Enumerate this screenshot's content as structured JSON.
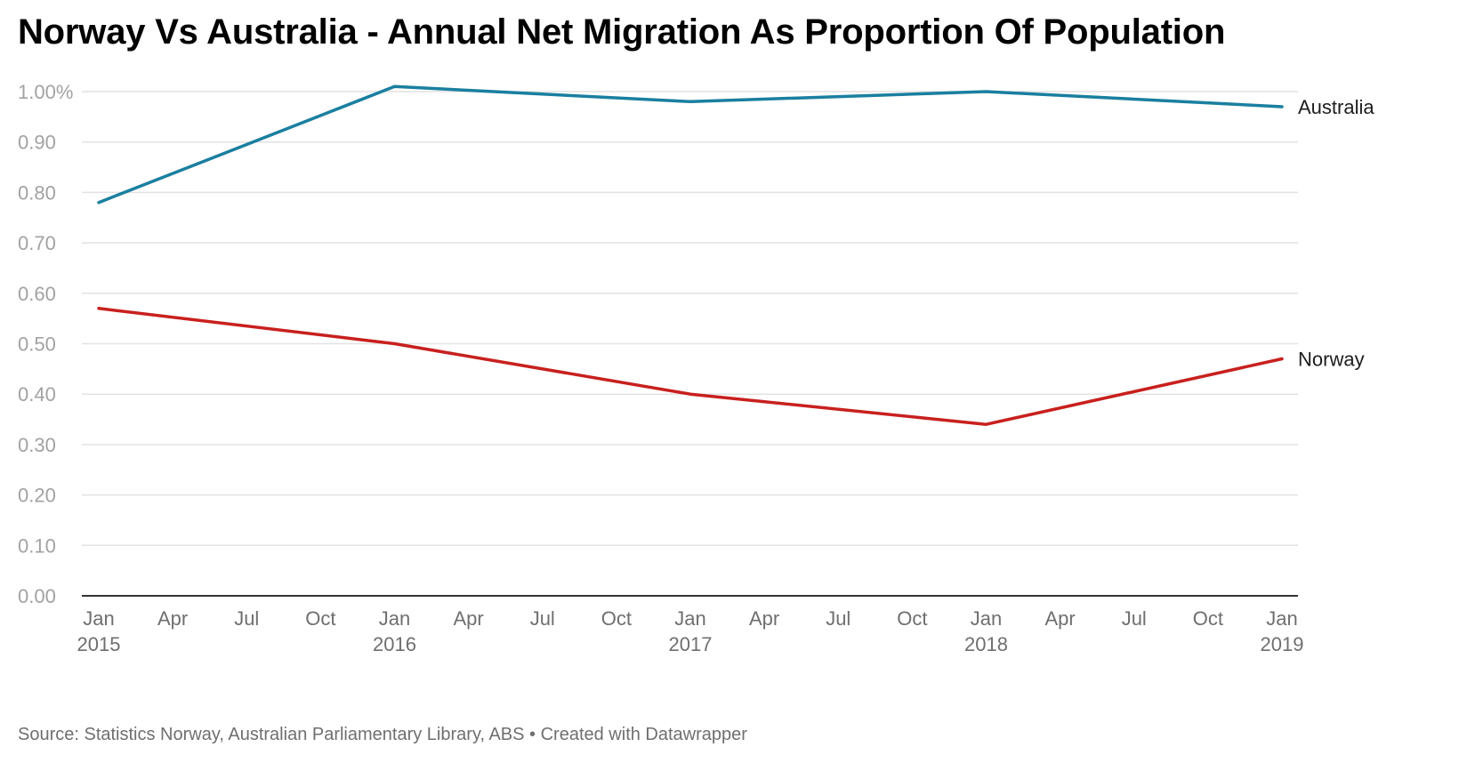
{
  "title": "Norway Vs Australia - Annual Net Migration As Proportion Of Population",
  "footer": {
    "source": "Source: Statistics Norway, Australian Parliamentary Library, ABS • Created with Datawrapper"
  },
  "chart_data": {
    "type": "line",
    "title": "Norway Vs Australia - Annual Net Migration As Proportion Of Population",
    "xlabel": "",
    "ylabel": "",
    "x": [
      "2015-01",
      "2016-01",
      "2017-01",
      "2018-01",
      "2019-01"
    ],
    "series": [
      {
        "name": "Australia",
        "color": "#1a7fa0",
        "values": [
          0.78,
          1.01,
          0.98,
          1.0,
          0.97
        ]
      },
      {
        "name": "Norway",
        "color": "#c8201e",
        "values": [
          0.57,
          0.5,
          0.4,
          0.34,
          0.47
        ]
      }
    ],
    "ylim": [
      0,
      1.0
    ],
    "y_ticks": [
      {
        "value": 0.0,
        "label": "0.00"
      },
      {
        "value": 0.1,
        "label": "0.10"
      },
      {
        "value": 0.2,
        "label": "0.20"
      },
      {
        "value": 0.3,
        "label": "0.30"
      },
      {
        "value": 0.4,
        "label": "0.40"
      },
      {
        "value": 0.5,
        "label": "0.50"
      },
      {
        "value": 0.6,
        "label": "0.60"
      },
      {
        "value": 0.7,
        "label": "0.70"
      },
      {
        "value": 0.8,
        "label": "0.80"
      },
      {
        "value": 0.9,
        "label": "0.90"
      },
      {
        "value": 1.0,
        "label": "1.00%"
      }
    ],
    "x_ticks": [
      {
        "date": "2015-01",
        "label": "Jan",
        "year": "2015"
      },
      {
        "date": "2015-04",
        "label": "Apr",
        "year": ""
      },
      {
        "date": "2015-07",
        "label": "Jul",
        "year": ""
      },
      {
        "date": "2015-10",
        "label": "Oct",
        "year": ""
      },
      {
        "date": "2016-01",
        "label": "Jan",
        "year": "2016"
      },
      {
        "date": "2016-04",
        "label": "Apr",
        "year": ""
      },
      {
        "date": "2016-07",
        "label": "Jul",
        "year": ""
      },
      {
        "date": "2016-10",
        "label": "Oct",
        "year": ""
      },
      {
        "date": "2017-01",
        "label": "Jan",
        "year": "2017"
      },
      {
        "date": "2017-04",
        "label": "Apr",
        "year": ""
      },
      {
        "date": "2017-07",
        "label": "Jul",
        "year": ""
      },
      {
        "date": "2017-10",
        "label": "Oct",
        "year": ""
      },
      {
        "date": "2018-01",
        "label": "Jan",
        "year": "2018"
      },
      {
        "date": "2018-04",
        "label": "Apr",
        "year": ""
      },
      {
        "date": "2018-07",
        "label": "Jul",
        "year": ""
      },
      {
        "date": "2018-10",
        "label": "Oct",
        "year": ""
      },
      {
        "date": "2019-01",
        "label": "Jan",
        "year": "2019"
      }
    ],
    "grid": true,
    "legend": "inline labels at line ends (right)",
    "colors": {
      "gridline": "#e2e2e2",
      "baseline": "#333333",
      "y_tick_text": "#a2a2a2",
      "x_tick_text": "#6f6f6f"
    }
  }
}
